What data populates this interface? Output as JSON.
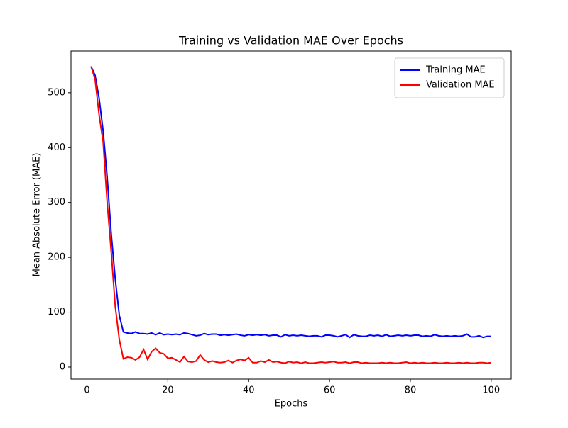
{
  "chart_data": {
    "type": "line",
    "title": "Training vs Validation MAE Over Epochs",
    "x_label": "Epochs",
    "y_label": "Mean Absolute Error (MAE)",
    "x": [
      1,
      2,
      3,
      4,
      5,
      6,
      7,
      8,
      9,
      10,
      11,
      12,
      13,
      14,
      15,
      16,
      17,
      18,
      19,
      20,
      21,
      22,
      23,
      24,
      25,
      26,
      27,
      28,
      29,
      30,
      31,
      32,
      33,
      34,
      35,
      36,
      37,
      38,
      39,
      40,
      41,
      42,
      43,
      44,
      45,
      46,
      47,
      48,
      49,
      50,
      51,
      52,
      53,
      54,
      55,
      56,
      57,
      58,
      59,
      60,
      61,
      62,
      63,
      64,
      65,
      66,
      67,
      68,
      69,
      70,
      71,
      72,
      73,
      74,
      75,
      76,
      77,
      78,
      79,
      80,
      81,
      82,
      83,
      84,
      85,
      86,
      87,
      88,
      89,
      90,
      91,
      92,
      93,
      94,
      95,
      96,
      97,
      98,
      99,
      100
    ],
    "series": [
      {
        "name": "Training MAE",
        "color": "#0000ff",
        "values": [
          548,
          532,
          490,
          430,
          346,
          243,
          160,
          94,
          64,
          62,
          61,
          64,
          61,
          61,
          60,
          62,
          59,
          62,
          59,
          60,
          59,
          60,
          59,
          62,
          61,
          59,
          57,
          58,
          61,
          59,
          60,
          60,
          58,
          59,
          58,
          59,
          60,
          58,
          57,
          59,
          58,
          59,
          58,
          59,
          57,
          58,
          58,
          55,
          59,
          57,
          58,
          57,
          58,
          57,
          56,
          57,
          57,
          55,
          58,
          58,
          57,
          55,
          57,
          59,
          54,
          59,
          57,
          56,
          56,
          58,
          57,
          58,
          56,
          59,
          56,
          57,
          58,
          57,
          58,
          57,
          58,
          58,
          56,
          57,
          56,
          59,
          57,
          56,
          57,
          56,
          57,
          56,
          57,
          60,
          55,
          55,
          57,
          54,
          56,
          56
        ]
      },
      {
        "name": "Validation MAE",
        "color": "#ff0000",
        "values": [
          548,
          525,
          460,
          410,
          300,
          210,
          110,
          50,
          15,
          18,
          17,
          13,
          18,
          32,
          14,
          28,
          34,
          26,
          24,
          16,
          17,
          13,
          9,
          19,
          10,
          9,
          11,
          22,
          13,
          9,
          11,
          9,
          8,
          9,
          12,
          8,
          12,
          14,
          12,
          17,
          8,
          8,
          11,
          9,
          13,
          9,
          10,
          8,
          7,
          10,
          8,
          9,
          7,
          9,
          7,
          7,
          8,
          9,
          8,
          9,
          10,
          8,
          8,
          9,
          7,
          9,
          9,
          7,
          8,
          7,
          7,
          7,
          8,
          7,
          8,
          7,
          7,
          8,
          9,
          7,
          8,
          7,
          8,
          7,
          7,
          8,
          7,
          7,
          8,
          7,
          7,
          8,
          7,
          8,
          7,
          7,
          8,
          8,
          7,
          8
        ]
      }
    ],
    "xlim": [
      -3.95,
      104.95
    ],
    "ylim": [
      -22,
      576
    ],
    "xticks": [
      0,
      20,
      40,
      60,
      80,
      100
    ],
    "yticks": [
      0,
      100,
      200,
      300,
      400,
      500
    ],
    "legend": "upper right"
  }
}
